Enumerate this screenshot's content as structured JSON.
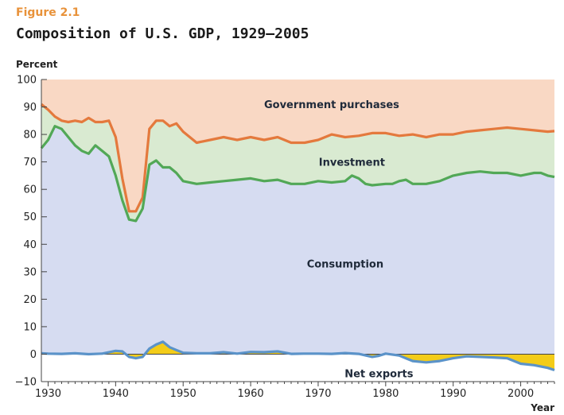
{
  "figure_label": "Figure 2.1",
  "chart_data": {
    "type": "area",
    "title": "Composition of U.S. GDP, 1929–2005",
    "ylabel": "Percent",
    "xlabel": "Year",
    "ylim": [
      -10,
      100
    ],
    "xlim": [
      1929,
      2005
    ],
    "yticks": [
      -10,
      0,
      10,
      20,
      30,
      40,
      50,
      60,
      70,
      80,
      90,
      100
    ],
    "xticks": [
      1930,
      1940,
      1950,
      1960,
      1970,
      1980,
      1990,
      2000
    ],
    "grid": false,
    "colors": {
      "government": "#f9d8c4",
      "investment": "#d9ead1",
      "consumption": "#d6dcf1",
      "net_exports_fill": "#f3cc19",
      "government_line": "#e4793d",
      "investment_line": "#52a857",
      "net_exports_line": "#5b93c9",
      "axis": "#444444"
    },
    "annotations": [
      {
        "text": "Government purchases",
        "x": 1972,
        "y": 91
      },
      {
        "text": "Investment",
        "x": 1975,
        "y": 70
      },
      {
        "text": "Consumption",
        "x": 1974,
        "y": 33
      },
      {
        "text": "Net exports",
        "x": 1979,
        "y": -7
      }
    ],
    "series": [
      {
        "name": "Government purchases",
        "x": [
          1929,
          1930,
          1931,
          1932,
          1933,
          1934,
          1935,
          1936,
          1937,
          1938,
          1939,
          1940,
          1941,
          1942,
          1943,
          1944,
          1945,
          1946,
          1947,
          1948,
          1949,
          1950,
          1952,
          1954,
          1956,
          1958,
          1960,
          1962,
          1964,
          1966,
          1968,
          1970,
          1972,
          1974,
          1976,
          1978,
          1980,
          1982,
          1984,
          1986,
          1988,
          1990,
          1992,
          1994,
          1996,
          1998,
          2000,
          2002,
          2004,
          2005
        ],
        "values": [
          91,
          89,
          86.5,
          85,
          84.5,
          85,
          84.5,
          86,
          84.5,
          84.5,
          85,
          79,
          64,
          52,
          52,
          57,
          82,
          85,
          85,
          83,
          84,
          81,
          77,
          78,
          79,
          78,
          79,
          78,
          79,
          77,
          77,
          78,
          80,
          79,
          79.5,
          80.5,
          80.5,
          79.5,
          80,
          79,
          80,
          80,
          81,
          81.5,
          82,
          82.5,
          82,
          81.5,
          81,
          81.2
        ]
      },
      {
        "name": "Investment",
        "x": [
          1929,
          1930,
          1931,
          1932,
          1933,
          1934,
          1935,
          1936,
          1937,
          1938,
          1939,
          1940,
          1941,
          1942,
          1943,
          1944,
          1945,
          1946,
          1947,
          1948,
          1949,
          1950,
          1952,
          1954,
          1956,
          1958,
          1960,
          1962,
          1964,
          1966,
          1968,
          1970,
          1972,
          1974,
          1975,
          1976,
          1977,
          1978,
          1980,
          1981,
          1982,
          1983,
          1984,
          1986,
          1988,
          1990,
          1992,
          1994,
          1996,
          1998,
          2000,
          2001,
          2002,
          2003,
          2004,
          2005
        ],
        "values": [
          75,
          78,
          83,
          82,
          79,
          76,
          74,
          73,
          76,
          74,
          72,
          65,
          56,
          49,
          48.5,
          53,
          69,
          70.5,
          68,
          68,
          66,
          63,
          62,
          62.5,
          63,
          63.5,
          64,
          63,
          63.5,
          62,
          62,
          63,
          62.5,
          63,
          65,
          64,
          62,
          61.5,
          62,
          62,
          63,
          63.5,
          62,
          62,
          63,
          65,
          66,
          66.5,
          66,
          66,
          65,
          65.5,
          66,
          66,
          65,
          64.5
        ]
      },
      {
        "name": "Net exports",
        "x": [
          1929,
          1930,
          1932,
          1934,
          1936,
          1938,
          1940,
          1941,
          1942,
          1943,
          1944,
          1945,
          1946,
          1947,
          1948,
          1949,
          1950,
          1952,
          1954,
          1956,
          1958,
          1960,
          1962,
          1964,
          1966,
          1968,
          1970,
          1972,
          1974,
          1976,
          1978,
          1979,
          1980,
          1982,
          1984,
          1986,
          1988,
          1990,
          1992,
          1994,
          1996,
          1998,
          2000,
          2002,
          2004,
          2005
        ],
        "values": [
          0.3,
          0.2,
          0.1,
          0.3,
          0,
          0.2,
          1.2,
          1,
          -1,
          -1.5,
          -1,
          2,
          3.5,
          4.5,
          2.5,
          1.5,
          0.5,
          0.3,
          0.3,
          0.7,
          0.2,
          0.8,
          0.7,
          1,
          0.1,
          0.2,
          0.2,
          0.1,
          0.4,
          0.1,
          -1,
          -0.6,
          0.2,
          -0.5,
          -2.5,
          -3,
          -2.5,
          -1.5,
          -0.8,
          -1,
          -1.2,
          -1.5,
          -3.5,
          -4,
          -5,
          -5.8
        ]
      }
    ]
  }
}
